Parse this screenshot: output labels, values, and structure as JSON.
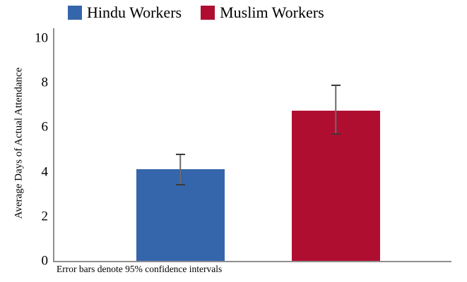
{
  "chart_data": {
    "type": "bar",
    "categories": [
      "Hindu Workers",
      "Muslim Workers"
    ],
    "values": [
      4.1,
      6.75
    ],
    "error_bars": {
      "lower": [
        3.4,
        5.65
      ],
      "upper": [
        4.8,
        7.9
      ]
    },
    "title": "",
    "xlabel": "",
    "ylabel": "Average Days of Actual Attendance",
    "yticks": [
      0,
      2,
      4,
      6,
      8,
      10
    ],
    "ylim": [
      0,
      10
    ],
    "grid": false,
    "legend_position": "top",
    "legend": [
      {
        "label": "Hindu Workers",
        "color": "#3565ab"
      },
      {
        "label": "Muslim Workers",
        "color": "#b00e31"
      }
    ],
    "note": "Error bars denote 95% confidence intervals",
    "axis_color": "#8f8f8f",
    "error_bar_color": "#3a3a3a"
  }
}
